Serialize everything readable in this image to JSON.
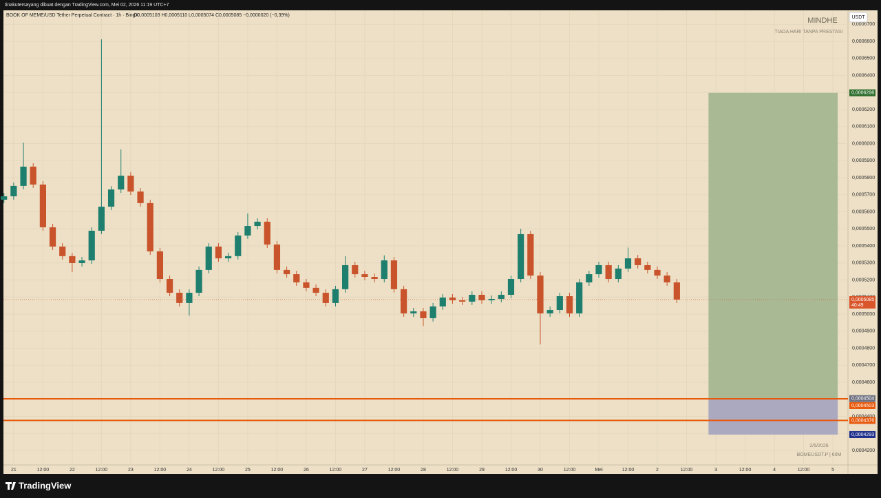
{
  "top_bar": "tinakutersayang dibuat dengan TradingView.com, Mei 02, 2026 11:19 UTC+7",
  "footer_brand": "TradingView",
  "chart_data": {
    "type": "candlestick",
    "symbol": "BOOK OF MEME/USD Tether Perpetual Contract · 1h · BingX",
    "ohlc_legend": "O0,0005103 H0,0005110 L0,0005074 C0,0005085 −0,0000020 (−0,39%)",
    "watermark": "MINDHE",
    "watermark_sub": "TIADA HARI TANPA PRESTASI",
    "currency": "USDT",
    "date_label": "2/5/2026",
    "ticker_label": "BOMEUSDT.P | 60M",
    "countdown": "40:49",
    "up_color": "#1f7f6f",
    "down_color": "#c9532b",
    "grid": true,
    "xlim": [
      -4.2,
      342.2
    ],
    "ylim": [
      0.0004115,
      0.0006782
    ],
    "x": [
      -4,
      0,
      4,
      8,
      12,
      16,
      20,
      24,
      28,
      32,
      36,
      40,
      44,
      48,
      52,
      56,
      60,
      64,
      68,
      72,
      76,
      80,
      84,
      88,
      92,
      96,
      100,
      104,
      108,
      112,
      116,
      120,
      124,
      128,
      132,
      136,
      140,
      144,
      148,
      152,
      156,
      160,
      164,
      168,
      172,
      176,
      180,
      184,
      188,
      192,
      196,
      200,
      204,
      208,
      212,
      216,
      220,
      224,
      228,
      232,
      236,
      240,
      244,
      248,
      252,
      256,
      260,
      264,
      268,
      272
    ],
    "open": [
      0.0005671,
      0.0005691,
      0.0005752,
      0.0005865,
      0.000576,
      0.0005509,
      0.0005396,
      0.000534,
      0.0005299,
      0.0005315,
      0.0005489,
      0.000563,
      0.0005731,
      0.0005812,
      0.0005719,
      0.0005651,
      0.0005368,
      0.0005206,
      0.0005125,
      0.0005065,
      0.0005125,
      0.0005259,
      0.0005396,
      0.0005327,
      0.000534,
      0.0005461,
      0.0005517,
      0.0005542,
      0.0005408,
      0.0005259,
      0.0005234,
      0.0005186,
      0.0005154,
      0.0005125,
      0.0005065,
      0.0005146,
      0.0005287,
      0.0005234,
      0.0005218,
      0.0005206,
      0.0005315,
      0.0005146,
      0.0005004,
      0.0005016,
      0.0004976,
      0.0005045,
      0.0005097,
      0.0005081,
      0.0005073,
      0.0005113,
      0.0005081,
      0.0005089,
      0.0005113,
      0.0005206,
      0.0005469,
      0.0005226,
      0.0005004,
      0.0005024,
      0.0005105,
      0.0005004,
      0.0005186,
      0.0005234,
      0.0005287,
      0.0005206,
      0.0005267,
      0.0005327,
      0.0005287,
      0.0005259,
      0.0005226,
      0.0005186
    ],
    "high": [
      0.0005711,
      0.0005772,
      0.0006006,
      0.0005885,
      0.000578,
      0.0005529,
      0.0005416,
      0.000536,
      0.0005335,
      0.0005509,
      0.0006612,
      0.0005751,
      0.0005966,
      0.0005832,
      0.0005739,
      0.0005671,
      0.0005388,
      0.0005226,
      0.0005145,
      0.0005145,
      0.0005279,
      0.0005416,
      0.0005416,
      0.000536,
      0.0005481,
      0.000559,
      0.0005562,
      0.0005562,
      0.0005428,
      0.0005279,
      0.0005254,
      0.0005206,
      0.0005174,
      0.0005145,
      0.0005166,
      0.000534,
      0.0005307,
      0.0005254,
      0.0005238,
      0.0005345,
      0.0005335,
      0.0005166,
      0.0005036,
      0.0005036,
      0.0005065,
      0.0005117,
      0.0005117,
      0.0005101,
      0.0005133,
      0.0005133,
      0.0005109,
      0.0005133,
      0.0005226,
      0.00055,
      0.0005489,
      0.0005246,
      0.0005044,
      0.0005125,
      0.0005125,
      0.0005206,
      0.0005254,
      0.0005307,
      0.0005307,
      0.0005287,
      0.000539,
      0.0005347,
      0.0005307,
      0.0005279,
      0.0005246,
      0.0005206
    ],
    "low": [
      0.0005651,
      0.0005671,
      0.0005732,
      0.000574,
      0.0005489,
      0.0005376,
      0.000532,
      0.0005246,
      0.0005279,
      0.0005295,
      0.0005469,
      0.000561,
      0.0005711,
      0.0005699,
      0.0005631,
      0.0005348,
      0.0005186,
      0.0005105,
      0.0005045,
      0.000499,
      0.0005105,
      0.0005239,
      0.0005307,
      0.0005307,
      0.000532,
      0.0005441,
      0.0005497,
      0.0005388,
      0.0005239,
      0.0005214,
      0.0005166,
      0.0005134,
      0.0005105,
      0.0005045,
      0.0005045,
      0.0005126,
      0.0005214,
      0.0005198,
      0.0005186,
      0.0005186,
      0.0005126,
      0.0004984,
      0.0004984,
      0.000493,
      0.0004956,
      0.0005025,
      0.0005061,
      0.0005053,
      0.0005053,
      0.0005061,
      0.0005061,
      0.0005069,
      0.0005093,
      0.0005186,
      0.0005206,
      0.0004822,
      0.0004984,
      0.0005004,
      0.0004984,
      0.0004984,
      0.0005166,
      0.0005214,
      0.0005186,
      0.0005186,
      0.0005247,
      0.0005267,
      0.0005239,
      0.0005206,
      0.0005166,
      0.0005065
    ],
    "close": [
      0.0005691,
      0.0005752,
      0.0005865,
      0.000576,
      0.0005509,
      0.0005396,
      0.000534,
      0.0005299,
      0.0005315,
      0.0005489,
      0.000563,
      0.0005731,
      0.0005812,
      0.0005719,
      0.0005651,
      0.0005368,
      0.0005206,
      0.0005125,
      0.0005065,
      0.0005125,
      0.0005259,
      0.0005396,
      0.0005327,
      0.000534,
      0.0005461,
      0.0005517,
      0.0005542,
      0.0005408,
      0.0005259,
      0.0005234,
      0.0005186,
      0.0005154,
      0.0005125,
      0.0005065,
      0.0005146,
      0.0005287,
      0.0005234,
      0.0005218,
      0.0005206,
      0.0005315,
      0.0005146,
      0.0005004,
      0.0005016,
      0.0004976,
      0.0005045,
      0.0005097,
      0.0005081,
      0.0005073,
      0.0005113,
      0.0005081,
      0.0005089,
      0.0005113,
      0.0005206,
      0.0005469,
      0.0005226,
      0.0005004,
      0.0005024,
      0.0005105,
      0.0005004,
      0.0005186,
      0.0005234,
      0.0005287,
      0.0005206,
      0.0005267,
      0.0005327,
      0.0005287,
      0.0005259,
      0.0005226,
      0.0005186,
      0.0005085
    ],
    "last_price": {
      "value": 0.0005085,
      "label": "0,0005085"
    },
    "position": {
      "x_start": 285,
      "x_end": 338,
      "entry": {
        "value": 0.0004504,
        "label": "0,0004504"
      },
      "target": {
        "value": 0.0006298,
        "label": "0,0006298"
      },
      "stop": {
        "value": 0.0004293,
        "label": "0,0004293"
      },
      "target_color": "#a9b994",
      "stop_color": "#aaa9c0"
    },
    "hlines": [
      {
        "value": 0.0004503,
        "label": "0,0004503"
      },
      {
        "value": 0.0004376,
        "label": "0,0004376"
      }
    ],
    "hline_color": "#e8590c",
    "yticks": [
      {
        "value": 0.00042,
        "label": "0,0004200"
      },
      {
        "value": 0.00043,
        "label": "0,0004300"
      },
      {
        "value": 0.00044,
        "label": "0,0004400"
      },
      {
        "value": 0.00045,
        "label": "0,0004500"
      },
      {
        "value": 0.00046,
        "label": "0,0004600"
      },
      {
        "value": 0.00047,
        "label": "0,0004700"
      },
      {
        "value": 0.00048,
        "label": "0,0004800"
      },
      {
        "value": 0.00049,
        "label": "0,0004900"
      },
      {
        "value": 0.0005,
        "label": "0,0005000"
      },
      {
        "value": 0.00051,
        "label": "0,0005100"
      },
      {
        "value": 0.00052,
        "label": "0,0005200"
      },
      {
        "value": 0.00053,
        "label": "0,0005300"
      },
      {
        "value": 0.00054,
        "label": "0,0005400"
      },
      {
        "value": 0.00055,
        "label": "0,0005500"
      },
      {
        "value": 0.00056,
        "label": "0,0005600"
      },
      {
        "value": 0.00057,
        "label": "0,0005700"
      },
      {
        "value": 0.00058,
        "label": "0,0005800"
      },
      {
        "value": 0.00059,
        "label": "0,0005900"
      },
      {
        "value": 0.0006,
        "label": "0,0006000"
      },
      {
        "value": 0.00061,
        "label": "0,0006100"
      },
      {
        "value": 0.00062,
        "label": "0,0006200"
      },
      {
        "value": 0.00063,
        "label": "0,0006300"
      },
      {
        "value": 0.00064,
        "label": "0,0006400"
      },
      {
        "value": 0.00065,
        "label": "0,0006500"
      },
      {
        "value": 0.00066,
        "label": "0,0006600"
      },
      {
        "value": 0.00067,
        "label": "0,0006700"
      }
    ],
    "xticks": [
      {
        "value": 0,
        "label": "21"
      },
      {
        "value": 12,
        "label": "12:00"
      },
      {
        "value": 24,
        "label": "22"
      },
      {
        "value": 36,
        "label": "12:00"
      },
      {
        "value": 48,
        "label": "23"
      },
      {
        "value": 60,
        "label": "12:00"
      },
      {
        "value": 72,
        "label": "24"
      },
      {
        "value": 84,
        "label": "12:00"
      },
      {
        "value": 96,
        "label": "25"
      },
      {
        "value": 108,
        "label": "12:00"
      },
      {
        "value": 120,
        "label": "26"
      },
      {
        "value": 132,
        "label": "12:00"
      },
      {
        "value": 144,
        "label": "27"
      },
      {
        "value": 156,
        "label": "12:00"
      },
      {
        "value": 168,
        "label": "28"
      },
      {
        "value": 180,
        "label": "12:00"
      },
      {
        "value": 192,
        "label": "29"
      },
      {
        "value": 204,
        "label": "12:00"
      },
      {
        "value": 216,
        "label": "30"
      },
      {
        "value": 228,
        "label": "12:00"
      },
      {
        "value": 240,
        "label": "Mei"
      },
      {
        "value": 252,
        "label": "12:00"
      },
      {
        "value": 264,
        "label": "2"
      },
      {
        "value": 276,
        "label": "12:00"
      },
      {
        "value": 288,
        "label": "3"
      },
      {
        "value": 300,
        "label": "12:00"
      },
      {
        "value": 312,
        "label": "4"
      },
      {
        "value": 324,
        "label": "12:00"
      },
      {
        "value": 336,
        "label": "5"
      }
    ]
  }
}
